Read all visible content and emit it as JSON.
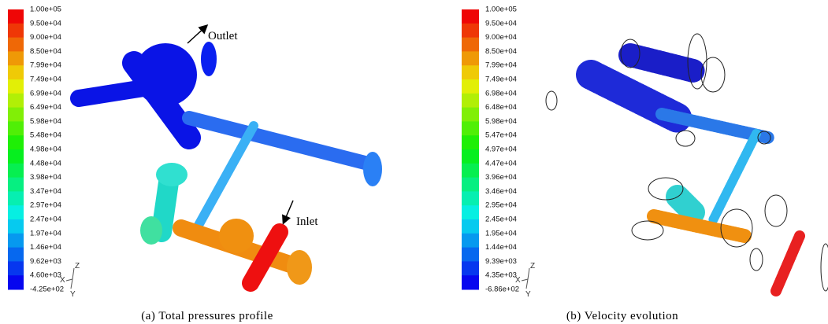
{
  "panels": [
    {
      "colorbar": {
        "labels": [
          "1.00e+05",
          "9.50e+04",
          "9.00e+04",
          "8.50e+04",
          "7.99e+04",
          "7.49e+04",
          "6.99e+04",
          "6.49e+04",
          "5.98e+04",
          "5.48e+04",
          "4.98e+04",
          "4.48e+04",
          "3.98e+04",
          "3.47e+04",
          "2.97e+04",
          "2.47e+04",
          "1.97e+04",
          "1.46e+04",
          "9.62e+03",
          "4.60e+03",
          "-4.25e+02"
        ]
      },
      "annotations": [
        "Outlet",
        "Inlet"
      ],
      "triad": [
        "Z",
        "X",
        "Y"
      ],
      "caption": "(a)  Total pressures profile"
    },
    {
      "colorbar": {
        "labels": [
          "1.00e+05",
          "9.50e+04",
          "9.00e+04",
          "8.50e+04",
          "7.99e+04",
          "7.49e+04",
          "6.98e+04",
          "6.48e+04",
          "5.98e+04",
          "5.47e+04",
          "4.97e+04",
          "4.47e+04",
          "3.96e+04",
          "3.46e+04",
          "2.95e+04",
          "2.45e+04",
          "1.95e+04",
          "1.44e+04",
          "9.39e+03",
          "4.35e+03",
          "-6.86e+02"
        ]
      },
      "triad": [
        "Z",
        "X",
        "Y"
      ],
      "caption": "(b)  Velocity evolution"
    }
  ]
}
